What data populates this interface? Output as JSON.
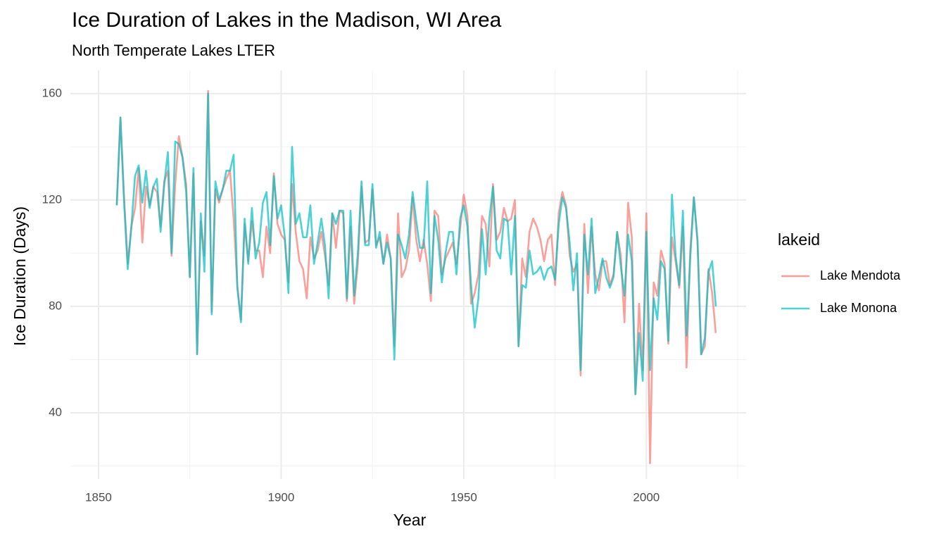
{
  "chart_data": {
    "type": "line",
    "title": "Ice Duration of Lakes in the Madison, WI Area",
    "subtitle": "North Temperate Lakes LTER",
    "xlabel": "Year",
    "ylabel": "Ice Duration (Days)",
    "legend_title": "lakeid",
    "legend": "right",
    "grid": true,
    "x": [
      1855,
      1856,
      1857,
      1858,
      1859,
      1860,
      1861,
      1862,
      1863,
      1864,
      1865,
      1866,
      1867,
      1868,
      1869,
      1870,
      1871,
      1872,
      1873,
      1874,
      1875,
      1876,
      1877,
      1878,
      1879,
      1880,
      1881,
      1882,
      1883,
      1884,
      1885,
      1886,
      1887,
      1888,
      1889,
      1890,
      1891,
      1892,
      1893,
      1894,
      1895,
      1896,
      1897,
      1898,
      1899,
      1900,
      1901,
      1902,
      1903,
      1904,
      1905,
      1906,
      1907,
      1908,
      1909,
      1910,
      1911,
      1912,
      1913,
      1914,
      1915,
      1916,
      1917,
      1918,
      1919,
      1920,
      1921,
      1922,
      1923,
      1924,
      1925,
      1926,
      1927,
      1928,
      1929,
      1930,
      1931,
      1932,
      1933,
      1934,
      1935,
      1936,
      1937,
      1938,
      1939,
      1940,
      1941,
      1942,
      1943,
      1944,
      1945,
      1946,
      1947,
      1948,
      1949,
      1950,
      1951,
      1952,
      1953,
      1954,
      1955,
      1956,
      1957,
      1958,
      1959,
      1960,
      1961,
      1962,
      1963,
      1964,
      1965,
      1966,
      1967,
      1968,
      1969,
      1970,
      1971,
      1972,
      1973,
      1974,
      1975,
      1976,
      1977,
      1978,
      1979,
      1980,
      1981,
      1982,
      1983,
      1984,
      1985,
      1986,
      1987,
      1988,
      1989,
      1990,
      1991,
      1992,
      1993,
      1994,
      1995,
      1996,
      1997,
      1998,
      1999,
      2000,
      2001,
      2002,
      2003,
      2004,
      2005,
      2006,
      2007,
      2008,
      2009,
      2010,
      2011,
      2012,
      2013,
      2014,
      2015,
      2016,
      2017,
      2018,
      2019
    ],
    "series": [
      {
        "name": "Lake Mendota",
        "color": "#F8766D",
        "values": [
          118,
          151,
          121,
          96,
          110,
          117,
          132,
          104,
          125,
          118,
          125,
          123,
          110,
          127,
          131,
          99,
          126,
          144,
          136,
          126,
          91,
          130,
          62,
          112,
          99,
          161,
          78,
          124,
          119,
          124,
          128,
          131,
          113,
          88,
          75,
          111,
          97,
          112,
          101,
          101,
          91,
          110,
          100,
          130,
          111,
          107,
          105,
          89,
          126,
          108,
          97,
          94,
          83,
          106,
          98,
          101,
          108,
          99,
          88,
          115,
          102,
          116,
          115,
          82,
          110,
          81,
          96,
          125,
          104,
          105,
          124,
          103,
          106,
          96,
          107,
          98,
          65,
          115,
          91,
          94,
          101,
          121,
          105,
          97,
          105,
          96,
          82,
          116,
          114,
          92,
          98,
          101,
          104,
          96,
          109,
          122,
          114,
          81,
          85,
          92,
          114,
          111,
          95,
          126,
          105,
          108,
          117,
          112,
          113,
          120,
          65,
          98,
          91,
          108,
          113,
          110,
          105,
          97,
          105,
          107,
          88,
          115,
          123,
          118,
          99,
          93,
          96,
          54,
          111,
          85,
          110,
          92,
          86,
          97,
          97,
          88,
          92,
          108,
          99,
          74,
          119,
          106,
          47,
          81,
          56,
          115,
          21,
          89,
          84,
          101,
          96,
          66,
          106,
          97,
          87,
          110,
          57,
          101,
          121,
          104,
          62,
          65,
          94,
          85,
          70
        ]
      },
      {
        "name": "Lake Monona",
        "color": "#00BFC4",
        "values": [
          118,
          151,
          119,
          94,
          110,
          129,
          133,
          119,
          131,
          117,
          125,
          128,
          108,
          126,
          138,
          100,
          142,
          141,
          136,
          123,
          91,
          132,
          62,
          115,
          93,
          160,
          77,
          127,
          120,
          124,
          131,
          131,
          137,
          87,
          74,
          113,
          96,
          117,
          98,
          104,
          119,
          123,
          103,
          129,
          113,
          118,
          106,
          85,
          140,
          111,
          115,
          106,
          106,
          118,
          96,
          104,
          113,
          103,
          83,
          115,
          111,
          116,
          116,
          83,
          116,
          84,
          100,
          127,
          103,
          103,
          126,
          102,
          108,
          96,
          104,
          98,
          60,
          107,
          103,
          98,
          107,
          123,
          112,
          102,
          102,
          127,
          85,
          114,
          105,
          89,
          100,
          108,
          108,
          92,
          113,
          118,
          110,
          88,
          72,
          83,
          109,
          92,
          113,
          125,
          101,
          98,
          113,
          112,
          92,
          114,
          65,
          88,
          87,
          101,
          92,
          93,
          95,
          90,
          94,
          95,
          90,
          111,
          121,
          117,
          104,
          86,
          100,
          56,
          107,
          92,
          113,
          85,
          91,
          98,
          91,
          87,
          91,
          108,
          95,
          84,
          107,
          97,
          47,
          70,
          52,
          108,
          56,
          83,
          75,
          97,
          94,
          67,
          122,
          99,
          88,
          116,
          69,
          98,
          121,
          105,
          62,
          68,
          93,
          97,
          80
        ]
      }
    ],
    "xlim": [
      1842.3,
      2027.3
    ],
    "xticks": [
      1850,
      1900,
      1950,
      2000
    ],
    "xminor_ticks": [
      1875,
      1925,
      1975,
      2025
    ],
    "ylim": [
      15.1,
      168.7
    ],
    "yticks": [
      40,
      80,
      120,
      160
    ],
    "yminor_ticks": [
      20,
      60,
      100,
      140
    ]
  }
}
